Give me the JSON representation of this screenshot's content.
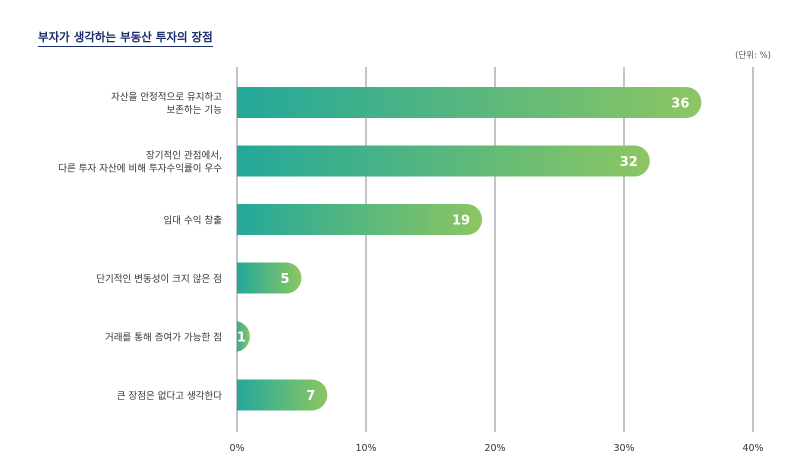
{
  "chart_data": {
    "type": "bar",
    "orientation": "horizontal",
    "title": "부자가 생각하는 부동산 투자의 장점",
    "unit": "(단위: %)",
    "categories": [
      [
        "자산을 안정적으로 유지하고",
        "보존하는 기능"
      ],
      [
        "장기적인 관점에서,",
        "다른 투자 자산에 비해 투자수익률이 우수"
      ],
      [
        "임대 수익 창출"
      ],
      [
        "단기적인 변동성이 크지 않은 점"
      ],
      [
        "거래를 통해 증여가 가능한 점"
      ],
      [
        "큰 장점은 없다고 생각한다"
      ]
    ],
    "values": [
      36,
      32,
      19,
      5,
      1,
      7
    ],
    "xlim": [
      0,
      40
    ],
    "xticks": [
      0,
      10,
      20,
      30,
      40
    ],
    "xtick_labels": [
      "0%",
      "10%",
      "20%",
      "30%",
      "40%"
    ],
    "grid": "vertical",
    "colors": {
      "bar_start": "#23a89a",
      "bar_end": "#8cc662",
      "grid": "#888888",
      "title": "#1c2f6b"
    }
  }
}
